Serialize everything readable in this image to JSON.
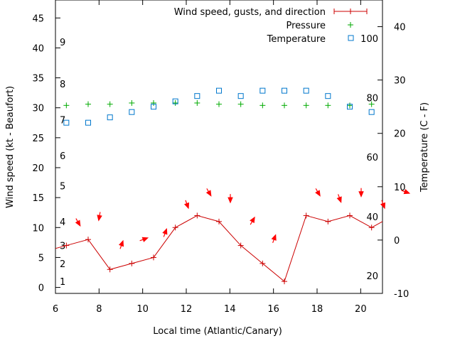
{
  "chart_data": {
    "type": "line",
    "xlabel": "Local time (Atlantic/Canary)",
    "ylabel": "Wind speed (kt - Beaufort)",
    "y2label": "Temperature (C - F)",
    "xlim": [
      6,
      21
    ],
    "ylim": [
      -1,
      48
    ],
    "y2lim": [
      -10,
      45
    ],
    "x_ticks": [
      6,
      8,
      10,
      12,
      14,
      16,
      18,
      20
    ],
    "y_ticks": [
      0,
      5,
      10,
      15,
      20,
      25,
      30,
      35,
      40,
      45
    ],
    "y2_ticks": [
      -10,
      0,
      10,
      20,
      30,
      40
    ],
    "beaufort_labels": [
      {
        "label": "1",
        "kt": 1
      },
      {
        "label": "2",
        "kt": 4
      },
      {
        "label": "3",
        "kt": 7
      },
      {
        "label": "4",
        "kt": 11
      },
      {
        "label": "5",
        "kt": 17
      },
      {
        "label": "6",
        "kt": 22
      },
      {
        "label": "7",
        "kt": 28
      },
      {
        "label": "8",
        "kt": 34
      },
      {
        "label": "9",
        "kt": 41
      }
    ],
    "fahrenheit_labels": [
      {
        "label": "20",
        "c": -6.7
      },
      {
        "label": "40",
        "c": 4.4
      },
      {
        "label": "60",
        "c": 15.6
      },
      {
        "label": "80",
        "c": 26.7
      },
      {
        "label": "100",
        "c": 37.8
      }
    ],
    "grid": false,
    "legend_position": "top-right",
    "series": [
      {
        "name": "Wind speed, gusts, and direction",
        "color": "#cc0000",
        "x": [
          5.5,
          6.5,
          7.5,
          8.5,
          9.5,
          10.5,
          11.5,
          12.5,
          13.5,
          14.5,
          15.5,
          16.5,
          17.5,
          18.5,
          19.5,
          20.5,
          21.5
        ],
        "values": [
          6,
          7,
          8,
          3,
          4,
          5,
          10,
          12,
          11,
          7,
          4,
          1,
          12,
          11,
          12,
          10,
          12
        ]
      },
      {
        "name": "Pressure",
        "color": "#00aa00",
        "x": [
          6.5,
          7.5,
          8.5,
          9.5,
          10.5,
          11.5,
          12.5,
          13.5,
          14.5,
          15.5,
          16.5,
          17.5,
          18.5,
          19.5,
          20.5
        ],
        "values": [
          30.4,
          30.6,
          30.6,
          30.8,
          30.8,
          30.8,
          30.8,
          30.6,
          30.6,
          30.4,
          30.4,
          30.4,
          30.4,
          30.4,
          30.6
        ]
      },
      {
        "name": "Temperature",
        "color": "#0077cc",
        "x": [
          6.5,
          7.5,
          8.5,
          9.5,
          10.5,
          11.5,
          12.5,
          13.5,
          14.5,
          15.5,
          16.5,
          17.5,
          18.5,
          19.5,
          20.5
        ],
        "values": [
          22,
          22,
          23,
          24,
          25,
          26,
          27,
          28,
          27,
          28,
          28,
          28,
          27,
          25,
          24
        ]
      }
    ],
    "wind_direction": {
      "color": "#ff0000",
      "x": [
        6.5,
        7.5,
        8.5,
        9.5,
        10.5,
        11.5,
        12.5,
        13.5,
        14.5,
        15.5,
        16.5,
        17.5,
        18.5,
        19.5,
        20.5,
        21.5
      ],
      "speed": [
        11,
        12,
        7,
        8,
        9,
        14,
        16,
        15,
        11,
        8,
        0,
        16,
        15,
        16,
        14,
        16
      ],
      "bearing_deg": [
        330,
        10,
        200,
        250,
        200,
        340,
        330,
        0,
        210,
        200,
        0,
        330,
        340,
        0,
        340,
        290
      ]
    }
  }
}
